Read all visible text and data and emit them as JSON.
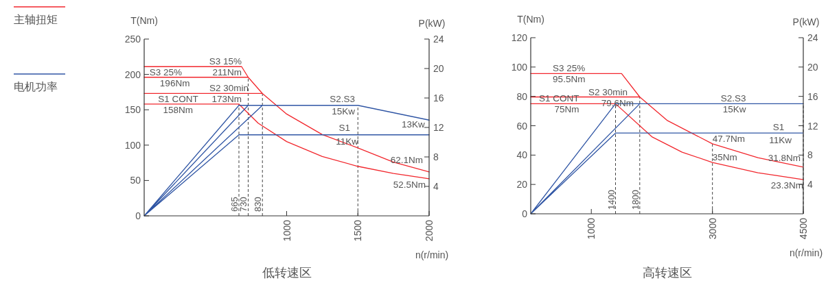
{
  "chart_data": [
    {
      "type": "line",
      "title": "低转速区",
      "xlabel": "n(r/min)",
      "ylabel": "T(Nm)",
      "y2label": "P(kW)",
      "legend": "left",
      "line_style": "solid",
      "xlim": [
        0,
        2000
      ],
      "xticks": [
        1000,
        1500,
        2000
      ],
      "ylim": [
        0,
        250
      ],
      "yticks": [
        0,
        50,
        100,
        150,
        200,
        250
      ],
      "y2lim": [
        0,
        24
      ],
      "y2ticks": [
        4,
        8,
        12,
        16,
        20,
        24
      ],
      "series": [
        {
          "name": "主轴扭矩",
          "color": "#f2262c",
          "x": [
            0,
            684,
            730,
            830,
            1000,
            1250,
            1500,
            1750,
            2000,
            null,
            0,
            730,
            null,
            0,
            830,
            null,
            0,
            665,
            800,
            1000,
            1250,
            1500,
            1750,
            2000
          ],
          "values": [
            211,
            211,
            196,
            173,
            144,
            115,
            96,
            76,
            62.1,
            null,
            196,
            196,
            null,
            173,
            173,
            null,
            158,
            158,
            131,
            105,
            84,
            70,
            60,
            52.5
          ]
        },
        {
          "name": "电机功率",
          "color": "#2f55a4",
          "axis": "y2",
          "x": [
            0,
            665,
            1500,
            2000,
            null,
            0,
            730,
            null,
            0,
            830,
            null,
            0,
            665,
            2000
          ],
          "values": [
            0,
            15,
            15,
            13,
            null,
            0,
            15,
            null,
            0,
            15,
            null,
            0,
            11,
            11
          ]
        }
      ],
      "ref_lines": [
        {
          "axis": "x",
          "value": 665,
          "label": "665",
          "line_style": "dashed"
        },
        {
          "axis": "x",
          "value": 730,
          "label": "730",
          "line_style": "dashed"
        },
        {
          "axis": "x",
          "value": 830,
          "label": "830",
          "line_style": "dashed"
        },
        {
          "axis": "x",
          "value": 1500,
          "label": null,
          "line_style": "dashed"
        }
      ],
      "annotations": [
        {
          "text": "S3  15%",
          "x": 684,
          "y": 211
        },
        {
          "text": "211Nm",
          "x": 684,
          "y": 211
        },
        {
          "text": "S3  25%",
          "x": 265,
          "y": 196
        },
        {
          "text": "196Nm",
          "x": 320,
          "y": 196
        },
        {
          "text": "S2  30min",
          "x": 733,
          "y": 173
        },
        {
          "text": "173Nm",
          "x": 684,
          "y": 173
        },
        {
          "text": "S1  CONT",
          "x": 380,
          "y": 158
        },
        {
          "text": "158Nm",
          "x": 342,
          "y": 158
        },
        "S2.S3",
        "15Kw",
        "S1",
        "11Kw",
        "13Kw",
        {
          "text": "62.1Nm",
          "x": 1976,
          "y": 62.1
        },
        {
          "text": "52.5Nm",
          "x": 1976,
          "y": 52.5
        }
      ]
    },
    {
      "type": "line",
      "title": "高转速区",
      "xlabel": "n(r/min)",
      "ylabel": "T(Nm)",
      "y2label": "P(kW)",
      "line_style": "solid",
      "xlim": [
        0,
        4500
      ],
      "xticks": [
        1000,
        3000,
        4500
      ],
      "ylim": [
        0,
        120
      ],
      "yticks": [
        0,
        20,
        40,
        60,
        80,
        100,
        120
      ],
      "y2lim": [
        0,
        24
      ],
      "y2ticks": [
        4,
        8,
        12,
        16,
        20,
        24
      ],
      "series": [
        {
          "color": "#f2262c",
          "x": [
            0,
            1500,
            1800,
            2250,
            3000,
            3750,
            4500,
            null,
            0,
            1800,
            null,
            0,
            1400,
            2000,
            2500,
            3000,
            3750,
            4500
          ],
          "values": [
            95.5,
            95.5,
            79.6,
            63.7,
            47.7,
            38.2,
            31.8,
            null,
            79.6,
            79.6,
            null,
            75,
            75,
            52.5,
            42,
            35,
            28,
            23.3
          ]
        },
        {
          "color": "#2f55a4",
          "axis": "y2",
          "x": [
            0,
            1400,
            4500,
            null,
            0,
            1800,
            null,
            0,
            1400,
            4500
          ],
          "values": [
            0,
            15,
            15,
            null,
            0,
            15,
            null,
            0,
            11,
            11
          ]
        }
      ],
      "ref_lines": [
        {
          "axis": "x",
          "value": 1400,
          "label": "1400",
          "line_style": "dashed"
        },
        {
          "axis": "x",
          "value": 1800,
          "label": "1800",
          "line_style": "dashed"
        },
        {
          "axis": "x",
          "value": 3000,
          "label": null,
          "line_style": "dashed"
        },
        {
          "axis": "x",
          "value": 4500,
          "label": null,
          "line_style": "dashed"
        }
      ],
      "annotations": [
        {
          "text": "S3  25%",
          "x": 900,
          "y": 95.5
        },
        {
          "text": "95.5Nm",
          "x": 900,
          "y": 95.5
        },
        {
          "text": "S2  30min",
          "x": 1600,
          "y": 79.6
        },
        {
          "text": "79.6Nm",
          "x": 1700,
          "y": 79.6
        },
        {
          "text": "S1  CONT",
          "x": 800,
          "y": 75
        },
        {
          "text": "75Nm",
          "x": 800,
          "y": 75
        },
        "S2.S3",
        "15Kw",
        "S1",
        "11Kw",
        {
          "text": "47.7Nm",
          "x": 3000,
          "y": 47.7
        },
        {
          "text": "35Nm",
          "x": 3000,
          "y": 35
        },
        {
          "text": "31.8Nm",
          "x": 4500,
          "y": 31.8
        },
        {
          "text": "23.3Nm",
          "x": 4500,
          "y": 23.3
        }
      ]
    }
  ]
}
